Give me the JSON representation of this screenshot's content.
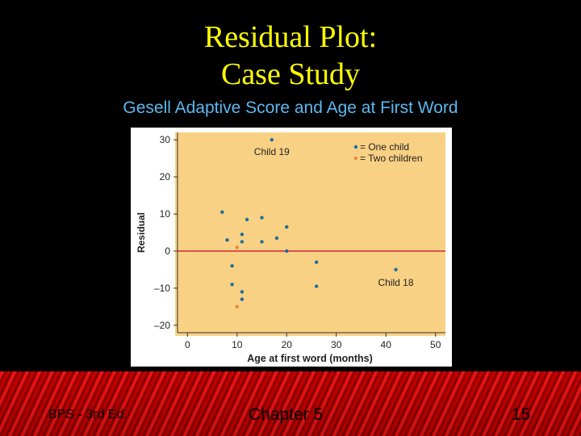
{
  "slide": {
    "title_line1": "Residual Plot:",
    "title_line2": "Case Study",
    "subtitle": "Gesell Adaptive Score and Age at First Word",
    "footer_left": "BPS - 3rd Ed.",
    "footer_center": "Chapter 5",
    "footer_right": "15"
  },
  "colors": {
    "background": "#000000",
    "title": "#ffff00",
    "subtitle": "#5cb8f0",
    "plot_bg": "#f9d184",
    "one_child": "#1f6e9a",
    "two_children": "#e8873a",
    "zero_line": "#d9323a"
  },
  "chart_data": {
    "type": "scatter",
    "title": "",
    "xlabel": "Age at first word (months)",
    "ylabel": "Residual",
    "xlim": [
      -2,
      52
    ],
    "ylim": [
      -22,
      32
    ],
    "xticks": [
      0,
      10,
      20,
      30,
      40,
      50
    ],
    "yticks": [
      30,
      20,
      10,
      0,
      -10,
      -20
    ],
    "ytick_labels": [
      "30",
      "20",
      "10",
      "0",
      "–10",
      "–20"
    ],
    "reference_line_y": 0,
    "legend": {
      "position": "top-right",
      "entries": [
        {
          "label": "= One child",
          "color": "#1f6e9a"
        },
        {
          "label": "= Two children",
          "color": "#e8873a"
        }
      ]
    },
    "series": [
      {
        "name": "One child",
        "points": [
          {
            "x": 7,
            "y": 10.5
          },
          {
            "x": 8,
            "y": 3
          },
          {
            "x": 9,
            "y": -4
          },
          {
            "x": 9,
            "y": -9
          },
          {
            "x": 11,
            "y": 4.5
          },
          {
            "x": 11,
            "y": 2.5
          },
          {
            "x": 11,
            "y": -11
          },
          {
            "x": 11,
            "y": -13
          },
          {
            "x": 12,
            "y": 8.5
          },
          {
            "x": 15,
            "y": 9
          },
          {
            "x": 15,
            "y": 2.5
          },
          {
            "x": 17,
            "y": 30
          },
          {
            "x": 18,
            "y": 3.5
          },
          {
            "x": 20,
            "y": 6.5
          },
          {
            "x": 20,
            "y": 0
          },
          {
            "x": 26,
            "y": -3
          },
          {
            "x": 26,
            "y": -9.5
          },
          {
            "x": 42,
            "y": -5
          }
        ]
      },
      {
        "name": "Two children",
        "points": [
          {
            "x": 10,
            "y": 1
          },
          {
            "x": 10,
            "y": -15
          }
        ]
      }
    ],
    "annotations": [
      {
        "text": "Child 19",
        "x": 17,
        "y": 30
      },
      {
        "text": "Child 18",
        "x": 42,
        "y": -5
      }
    ]
  }
}
